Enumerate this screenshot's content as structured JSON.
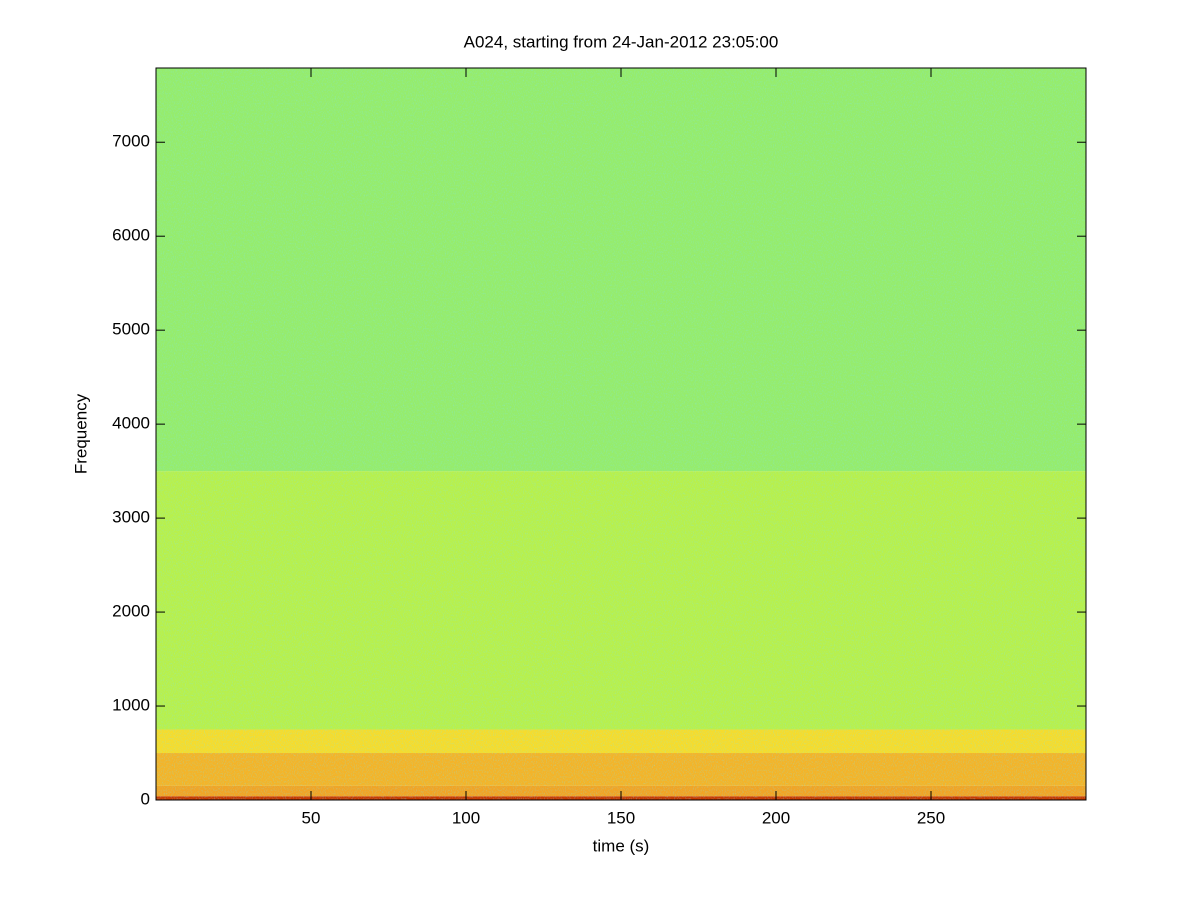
{
  "chart_data": {
    "type": "spectrogram",
    "title": "A024, starting from 24-Jan-2012 23:05:00",
    "xlabel": "time (s)",
    "ylabel": "Frequency",
    "xlim": [
      0,
      300
    ],
    "ylim": [
      0,
      7790
    ],
    "xticks": [
      50,
      100,
      150,
      200,
      250
    ],
    "yticks": [
      0,
      1000,
      2000,
      3000,
      4000,
      5000,
      6000,
      7000
    ],
    "bands": [
      {
        "from": 0,
        "to": 40,
        "color": "#c83a00"
      },
      {
        "from": 40,
        "to": 150,
        "color": "#f2a424"
      },
      {
        "from": 150,
        "to": 500,
        "color": "#f4b428"
      },
      {
        "from": 500,
        "to": 750,
        "color": "#f6dc2c"
      },
      {
        "from": 750,
        "to": 3500,
        "color": "#b8f04c"
      },
      {
        "from": 3500,
        "to": 7790,
        "color": "#96ec6c"
      }
    ]
  }
}
